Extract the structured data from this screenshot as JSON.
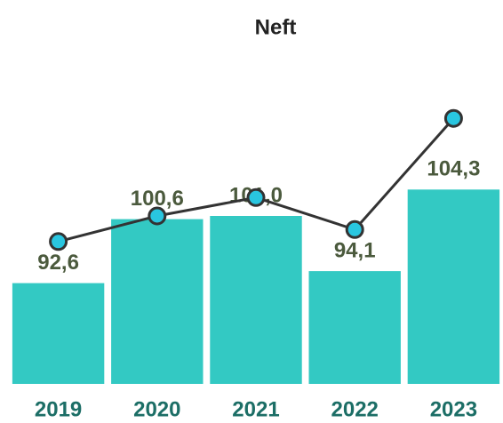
{
  "chart_data": {
    "type": "combo",
    "title": "Neft",
    "categories": [
      "2019",
      "2020",
      "2021",
      "2022",
      "2023"
    ],
    "ylim": [
      80,
      116
    ],
    "series": [
      {
        "type": "bar",
        "color": "#33c9c3",
        "values": [
          92.6,
          100.6,
          101.0,
          94.1,
          104.3
        ],
        "value_labels": [
          "92,6",
          "100,6",
          "101,0",
          "94,1",
          "104,3"
        ]
      },
      {
        "type": "line",
        "color": "#333333",
        "marker_color": "#29c6e0",
        "values": [
          97.8,
          101.0,
          103.3,
          99.3,
          113.2
        ]
      }
    ]
  }
}
